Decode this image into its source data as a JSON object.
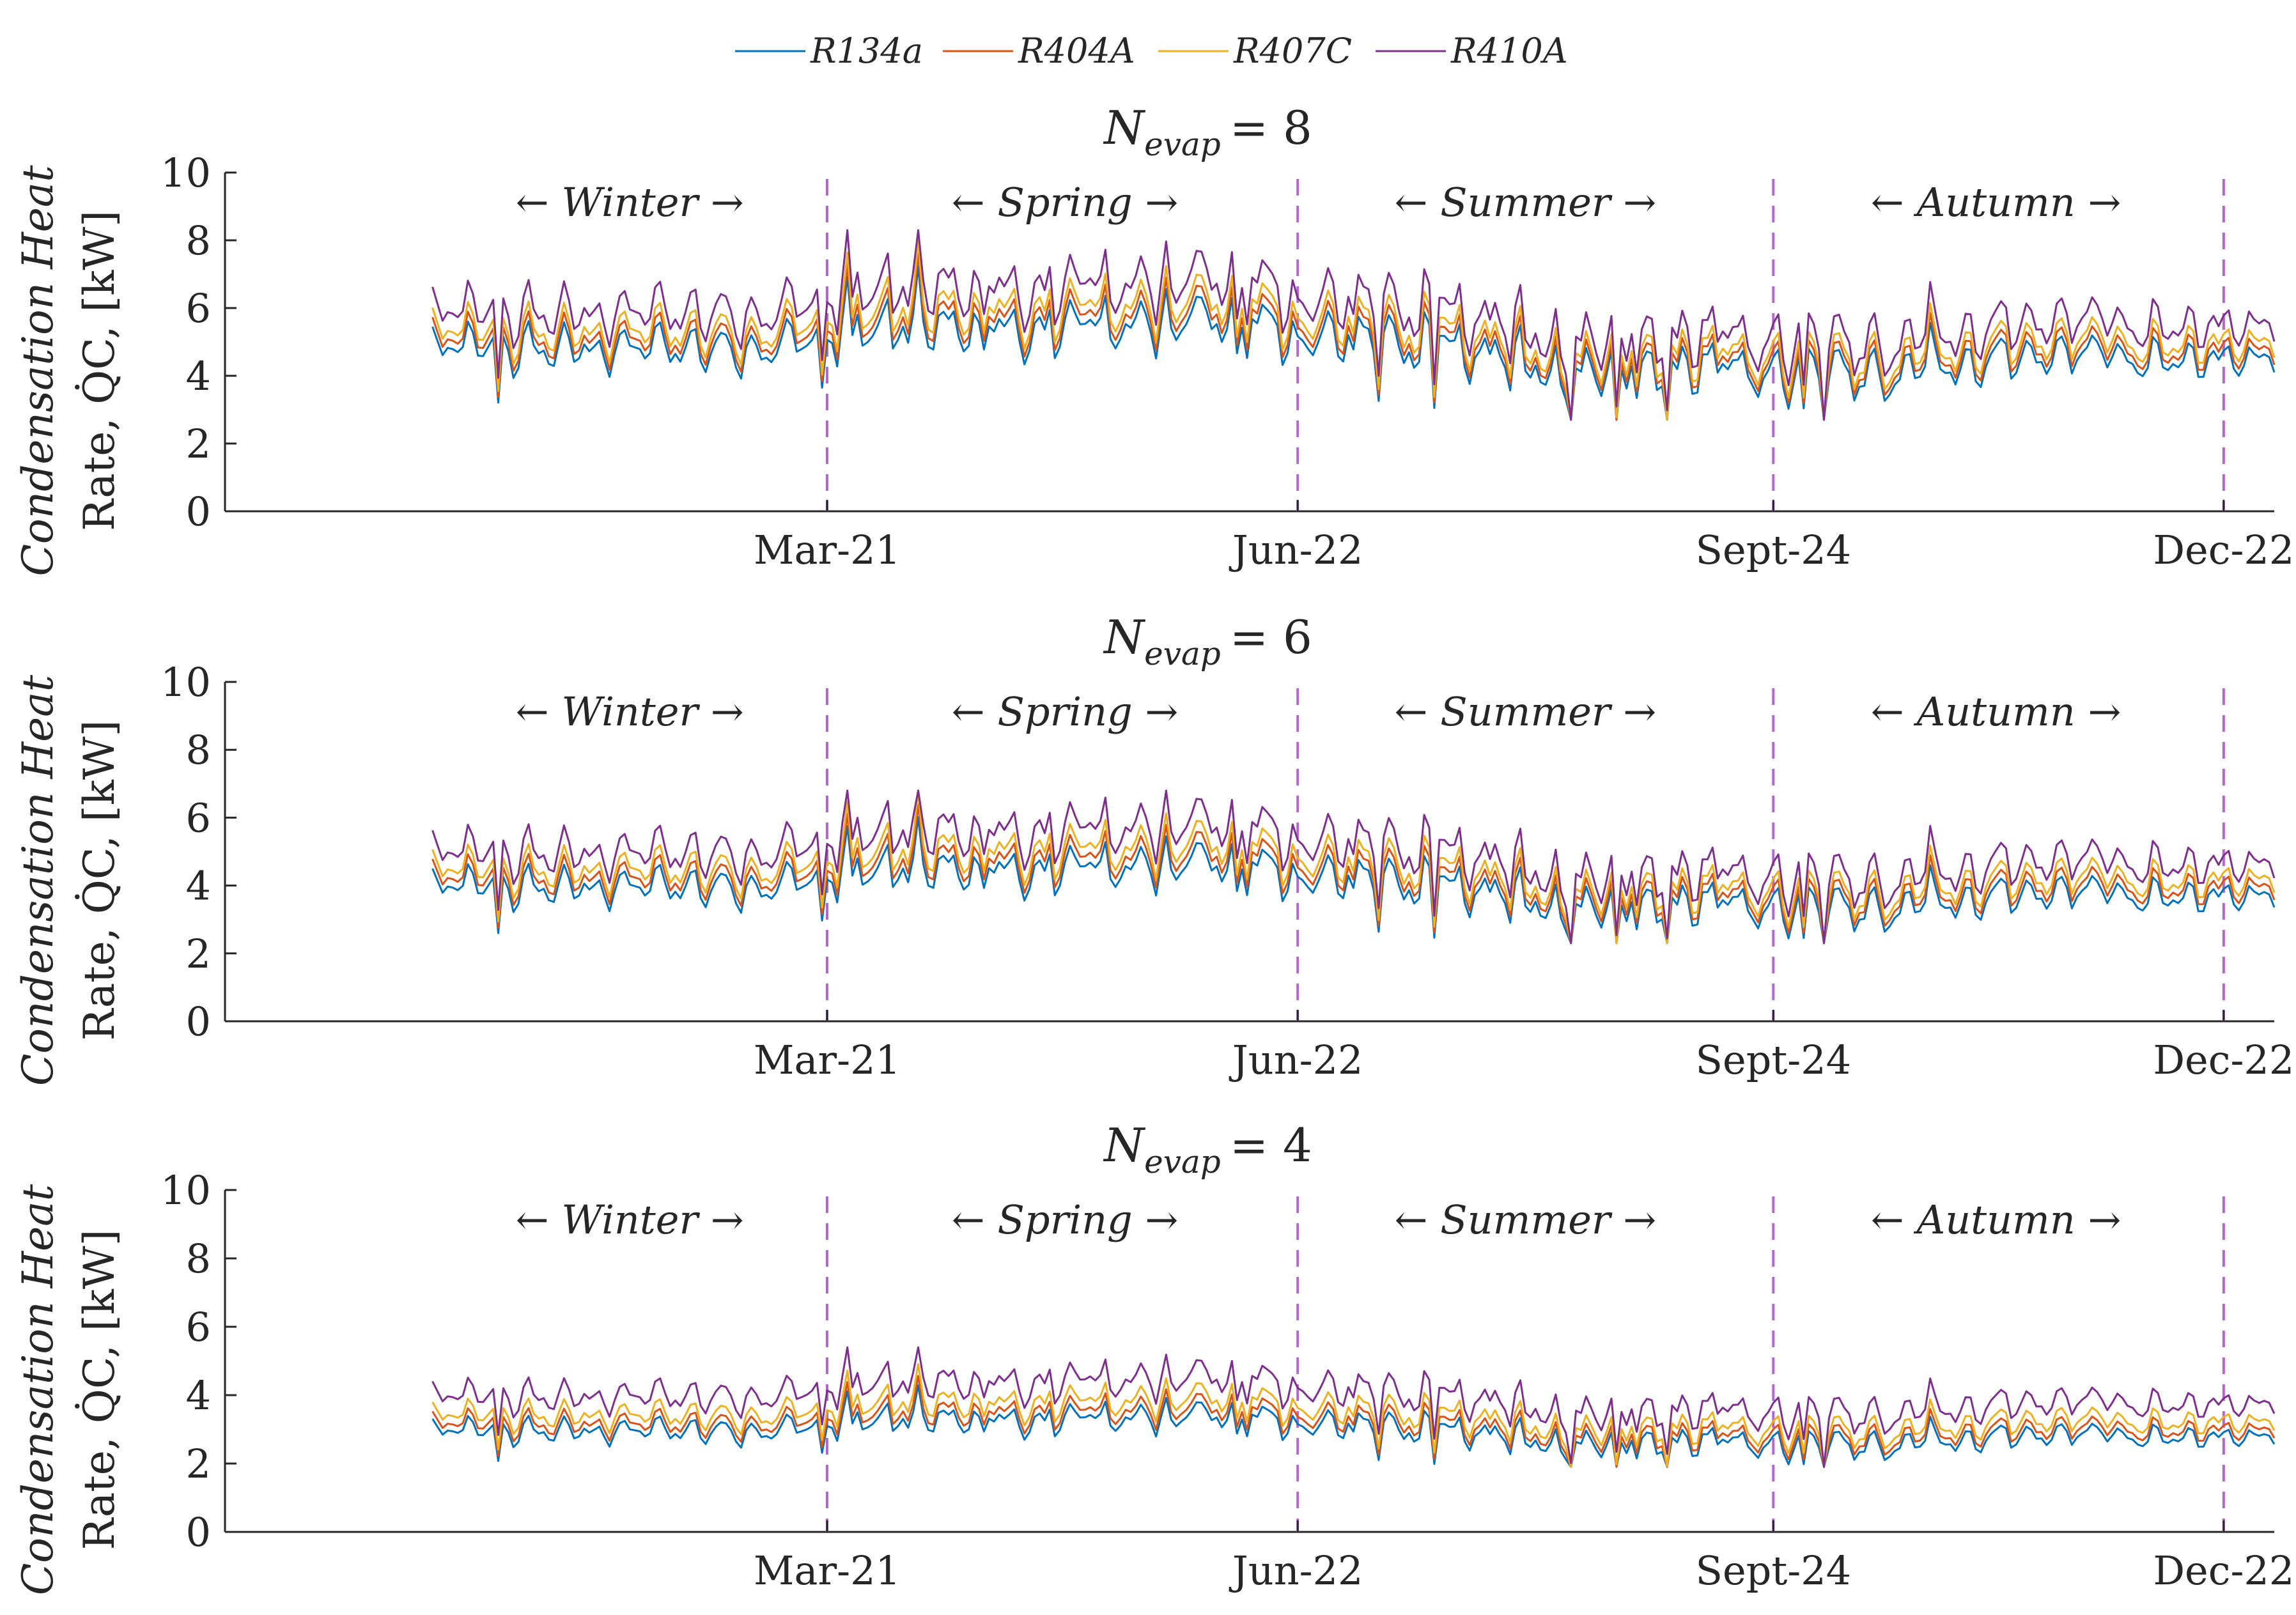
{
  "legend": {
    "entries": [
      {
        "label": "R134a",
        "color": "#0072BD"
      },
      {
        "label": "R404A",
        "color": "#D95319"
      },
      {
        "label": "R407C",
        "color": "#EDB120"
      },
      {
        "label": "R410A",
        "color": "#7E2F8E"
      }
    ]
  },
  "axis": {
    "ylabel_line1": "Condensation Heat",
    "ylabel_line2": "Rate, Q̇C, [kW]",
    "yticks": [
      "0",
      "2",
      "4",
      "6",
      "8",
      "10"
    ],
    "xticks": [
      {
        "label": "Mar-21",
        "day": 79
      },
      {
        "label": "Jun-22",
        "day": 172
      },
      {
        "label": "Sept-24",
        "day": 266
      },
      {
        "label": "Dec-22",
        "day": 355
      }
    ],
    "seasons": [
      {
        "label": "← Winter →",
        "day": 40
      },
      {
        "label": "← Spring →",
        "day": 126
      },
      {
        "label": "← Summer →",
        "day": 217
      },
      {
        "label": "← Autumn →",
        "day": 310
      }
    ],
    "divider_color": "#B366CC"
  },
  "chart_data": [
    {
      "type": "line",
      "title": "N_evap = 8",
      "title_main": "N",
      "title_sub": "evap",
      "title_rest": "= 8",
      "x_domain": [
        1,
        365
      ],
      "ylim": [
        0,
        10
      ],
      "series": [
        {
          "name": "R134a",
          "base": 4.8,
          "scale": 1.0
        },
        {
          "name": "R404A",
          "base": 5.05,
          "scale": 1.05
        },
        {
          "name": "R407C",
          "base": 5.3,
          "scale": 1.1
        },
        {
          "name": "R410A",
          "base": 5.85,
          "scale": 1.2
        }
      ],
      "min_value": 2.7,
      "max_value": 8.3
    },
    {
      "type": "line",
      "title": "N_evap = 6",
      "title_main": "N",
      "title_sub": "evap",
      "title_rest": "= 6",
      "x_domain": [
        1,
        365
      ],
      "ylim": [
        0,
        10
      ],
      "series": [
        {
          "name": "R134a",
          "base": 3.95,
          "scale": 0.85
        },
        {
          "name": "R404A",
          "base": 4.2,
          "scale": 0.9
        },
        {
          "name": "R407C",
          "base": 4.45,
          "scale": 0.95
        },
        {
          "name": "R410A",
          "base": 4.95,
          "scale": 1.05
        }
      ],
      "min_value": 2.3,
      "max_value": 6.8
    },
    {
      "type": "line",
      "title": "N_evap = 4",
      "title_main": "N",
      "title_sub": "evap",
      "title_rest": "= 4",
      "x_domain": [
        1,
        365
      ],
      "ylim": [
        0,
        10
      ],
      "series": [
        {
          "name": "R134a",
          "base": 2.95,
          "scale": 0.55
        },
        {
          "name": "R404A",
          "base": 3.15,
          "scale": 0.58
        },
        {
          "name": "R407C",
          "base": 3.4,
          "scale": 0.62
        },
        {
          "name": "R410A",
          "base": 3.95,
          "scale": 0.7
        }
      ],
      "min_value": 1.9,
      "max_value": 5.4
    }
  ]
}
